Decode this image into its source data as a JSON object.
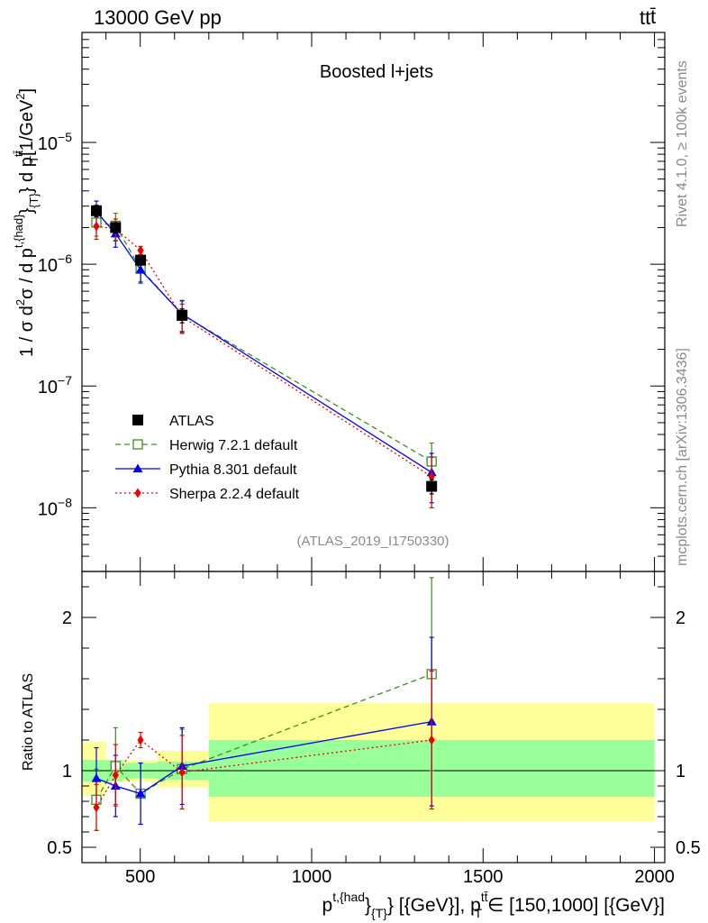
{
  "header": {
    "left": "13000 GeV pp",
    "right_main": "tt",
    "right_bar": "t̄"
  },
  "side_labels": {
    "rivet": "Rivet 4.1.0, ≥ 100k events",
    "mcplots": "mcplots.cern.ch [arXiv:1306.3436]"
  },
  "chart_data": {
    "type": "scatter",
    "title": "Boosted l+jets",
    "watermark": "(ATLAS_2019_I1750330)",
    "yscale": "log",
    "ylim": [
      3e-09,
      8e-05
    ],
    "xlim": [
      330,
      2030
    ],
    "xticks": [
      500,
      1000,
      1500,
      2000
    ],
    "ylabel": {
      "lead": "1 / σ d",
      "sup2": "2",
      "mid1": "σ / d p",
      "sup_t": "t,{had}",
      "mid2": "}",
      "sub_t": "{T}",
      "mid3": "} d p",
      "sup_tt": "tt̄",
      "sub_T": "T",
      "unit_open": "[1/GeV",
      "unit_exp": "2",
      "unit_close": "]"
    },
    "ytick_labels": [
      {
        "base": "10",
        "exp": "−5"
      },
      {
        "base": "10",
        "exp": "−6"
      },
      {
        "base": "10",
        "exp": "−7"
      },
      {
        "base": "10",
        "exp": "−8"
      }
    ],
    "xlabel": {
      "p1": "p",
      "sup1": "t,{had",
      "mid1": "}",
      "sub1": "{T}",
      "mid2": "} [{GeV}], p",
      "sup2": "tt̄",
      "sub2": "T",
      "mid3": " ∈ [150,1000] [{GeV}]"
    },
    "bins": [
      [
        330,
        400
      ],
      [
        400,
        450
      ],
      [
        450,
        550
      ],
      [
        550,
        700
      ],
      [
        700,
        2000
      ]
    ],
    "series": [
      {
        "name": "ATLAS",
        "marker": "filled-square",
        "color": "#000000",
        "x": [
          372,
          428,
          501,
          622,
          1350
        ],
        "y": [
          2.75e-06,
          2e-06,
          1.08e-06,
          3.8e-07,
          1.5e-08
        ],
        "yerr_low": [
          3e-07,
          2e-07,
          1e-07,
          5e-08,
          2e-09
        ],
        "yerr_high": [
          3e-07,
          2e-07,
          1e-07,
          5e-08,
          2e-09
        ]
      },
      {
        "name": "Herwig 7.2.1 default",
        "marker": "open-square",
        "color": "#3d8f1f",
        "dash": "6,4",
        "x": [
          372,
          428,
          501,
          622,
          1350
        ],
        "y": [
          2.2e-06,
          2.07e-06,
          9.2e-07,
          3.85e-07,
          2.4e-08
        ],
        "yerr_low": [
          5e-07,
          5e-07,
          2e-07,
          1.1e-07,
          9e-09
        ],
        "yerr_high": [
          6e-07,
          5.5e-07,
          2.2e-07,
          1.2e-07,
          1e-08
        ]
      },
      {
        "name": "Pythia 8.301 default",
        "marker": "filled-triangle",
        "color": "#0000ee",
        "dash": "",
        "x": [
          372,
          428,
          501,
          622,
          1350
        ],
        "y": [
          2.7e-06,
          1.78e-06,
          9e-07,
          3.9e-07,
          1.95e-08
        ],
        "yerr_low": [
          6e-07,
          4e-07,
          2e-07,
          1.1e-07,
          8.5e-09
        ],
        "yerr_high": [
          6e-07,
          4e-07,
          2e-07,
          1.1e-07,
          8.5e-09
        ]
      },
      {
        "name": "Sherpa 2.2.4 default",
        "marker": "filled-diamond",
        "color": "#ee0000",
        "dash": "2,3",
        "x": [
          372,
          428,
          501,
          622,
          1350
        ],
        "y": [
          2.05e-06,
          1.95e-06,
          1.3e-06,
          3.7e-07,
          1.8e-08
        ],
        "yerr_low": [
          4.5e-07,
          4e-07,
          1e-07,
          1e-07,
          8e-09
        ],
        "yerr_high": [
          4.5e-07,
          4e-07,
          1e-07,
          1e-07,
          8e-09
        ]
      }
    ],
    "ratio": {
      "ylabel": "Ratio to ATLAS",
      "ylim": [
        0.4,
        2.3
      ],
      "yticks": [
        0.5,
        1,
        2
      ],
      "ytick_labels": [
        "0.5",
        "1",
        "2"
      ],
      "band_inner": [
        [
          0.93,
          1.07
        ],
        [
          0.93,
          1.07
        ],
        [
          0.95,
          1.05
        ],
        [
          0.94,
          1.06
        ],
        [
          0.83,
          1.2
        ]
      ],
      "band_outer": [
        [
          0.84,
          1.19
        ],
        [
          0.93,
          1.07
        ],
        [
          0.93,
          1.07
        ],
        [
          0.89,
          1.13
        ],
        [
          0.67,
          1.44
        ]
      ],
      "series": [
        {
          "name": "Herwig 7.2.1 default",
          "y": [
            0.81,
            1.03,
            0.85,
            1.01,
            1.63
          ],
          "yerr_low": [
            0.2,
            0.25,
            0.2,
            0.26,
            0.63
          ],
          "yerr_high": [
            0.2,
            0.25,
            0.2,
            0.26,
            0.63
          ]
        },
        {
          "name": "Pythia 8.301 default",
          "y": [
            0.95,
            0.9,
            0.85,
            1.03,
            1.32
          ],
          "yerr_low": [
            0.2,
            0.2,
            0.2,
            0.25,
            0.55
          ],
          "yerr_high": [
            0.2,
            0.2,
            0.2,
            0.25,
            0.55
          ]
        },
        {
          "name": "Sherpa 2.2.4 default",
          "y": [
            0.76,
            0.97,
            1.2,
            0.99,
            1.2
          ],
          "yerr_low": [
            0.15,
            0.2,
            0.05,
            0.24,
            0.45
          ],
          "yerr_high": [
            0.15,
            0.2,
            0.05,
            0.24,
            0.45
          ]
        }
      ]
    }
  }
}
